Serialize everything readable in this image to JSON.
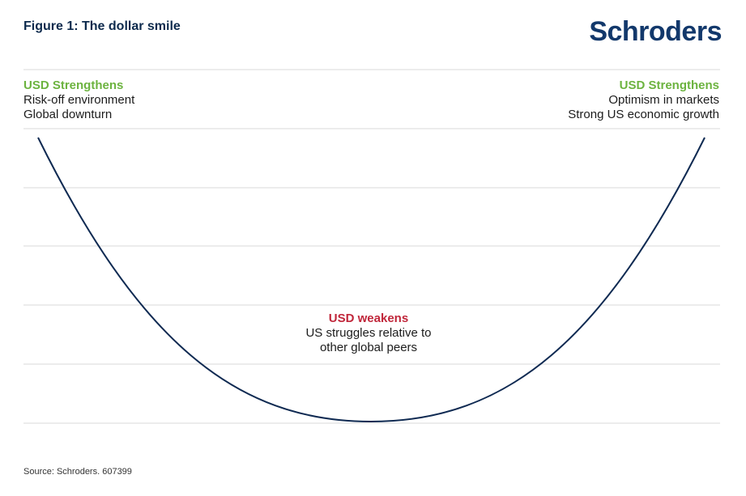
{
  "title": "Figure 1: The dollar smile",
  "logo_text": "Schroders",
  "source": "Source: Schroders. 607399",
  "colors": {
    "title": "#0d2a4d",
    "logo": "#12386b",
    "strengthen": "#6cb33f",
    "weaken": "#c0263a",
    "curve": "#0f2a52",
    "gridline": "#d9d9d9"
  },
  "annotations": {
    "left": {
      "heading": "USD Strengthens",
      "line1": "Risk-off environment",
      "line2": "Global downturn"
    },
    "right": {
      "heading": "USD Strengthens",
      "line1": "Optimism in markets",
      "line2": "Strong US economic growth"
    },
    "center": {
      "heading": "USD weakens",
      "line1": "US struggles relative to",
      "line2": "other global peers"
    }
  }
}
